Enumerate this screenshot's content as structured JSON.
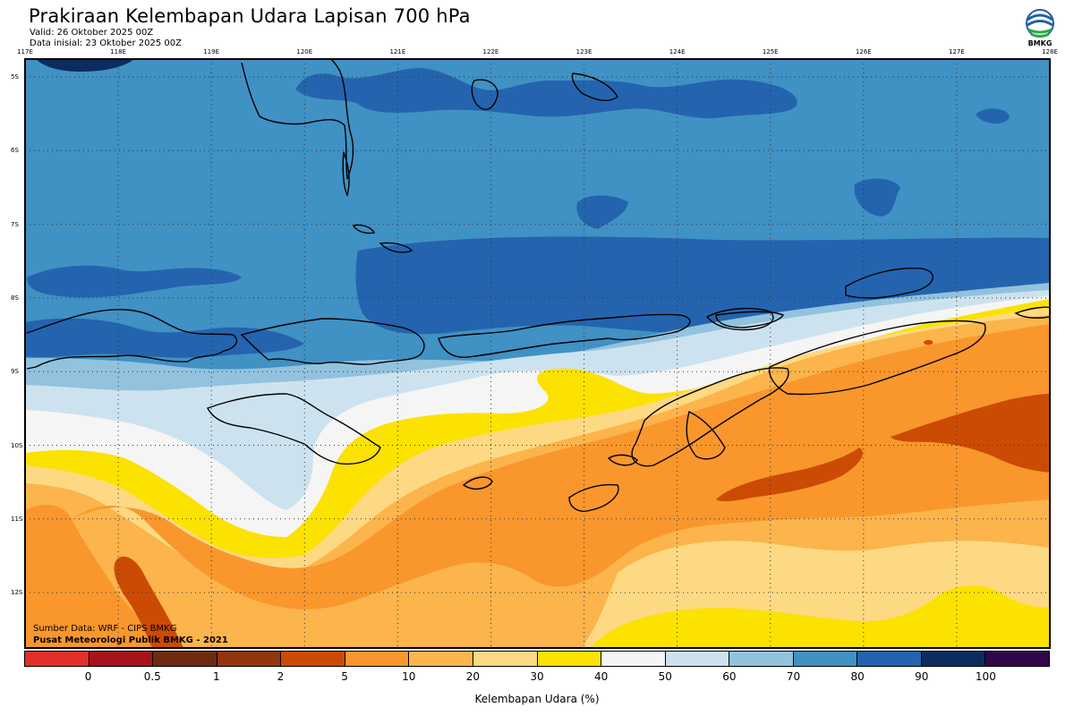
{
  "header": {
    "title": "Prakiraan Kelembapan Udara Lapisan 700 hPa",
    "valid": "Valid: 26 Oktober 2025 00Z",
    "initial": "Data inisial: 23 Oktober 2025 00Z",
    "logo_text": "BMKG"
  },
  "map": {
    "lon_labels": [
      "117E",
      "118E",
      "119E",
      "120E",
      "121E",
      "122E",
      "123E",
      "124E",
      "125E",
      "126E",
      "127E",
      "128E"
    ],
    "lat_labels": [
      "5S",
      "6S",
      "7S",
      "8S",
      "9S",
      "10S",
      "11S",
      "12S"
    ],
    "credits": {
      "source": "Sumber Data: WRF - CIPS BMKG",
      "center": "Pusat Meteorologi Publik BMKG - 2021"
    }
  },
  "colorbar": {
    "title": "Kelembapan Udara (%)",
    "ticks": [
      "0",
      "0.5",
      "1",
      "2",
      "5",
      "10",
      "20",
      "30",
      "40",
      "50",
      "60",
      "70",
      "80",
      "90",
      "100"
    ],
    "colors": [
      "#e0302a",
      "#a5141b",
      "#6e2b12",
      "#93350f",
      "#cb4b04",
      "#f9972c",
      "#fcb44c",
      "#fed983",
      "#fbe200",
      "#f5f5f5",
      "#cde2ef",
      "#92c2de",
      "#4091c4",
      "#2464ae",
      "#0b2c5f",
      "#2e0848"
    ]
  },
  "colors": {
    "coast": "#000000",
    "grid": "#333333"
  }
}
